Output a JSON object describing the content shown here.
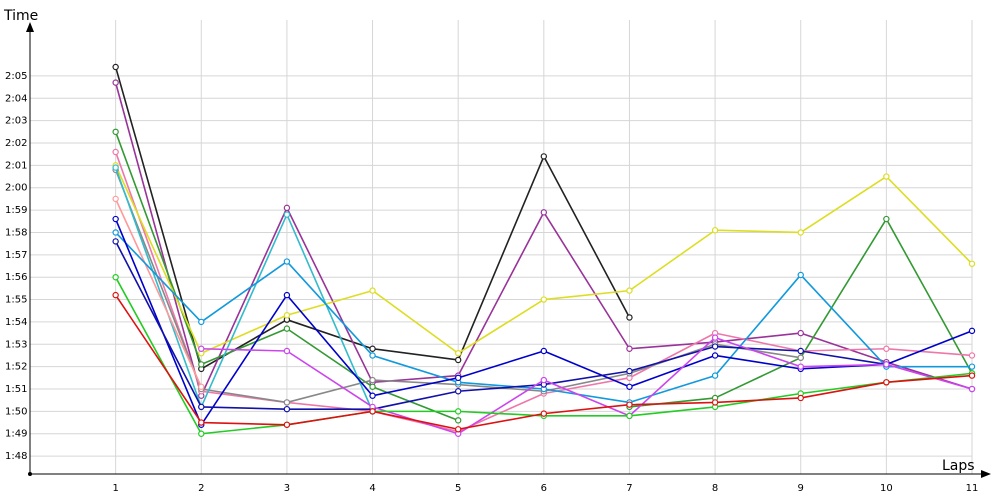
{
  "chart_data": {
    "type": "line",
    "title": "",
    "xlabel": "Laps",
    "ylabel": "Time",
    "x": [
      1,
      2,
      3,
      4,
      5,
      6,
      7,
      8,
      9,
      10,
      11
    ],
    "x_tick_labels": [
      "1",
      "2",
      "3",
      "4",
      "5",
      "6",
      "7",
      "8",
      "9",
      "10",
      "11"
    ],
    "y_tick_labels": [
      "1:48",
      "1:49",
      "1:50",
      "1:51",
      "1:52",
      "1:53",
      "1:54",
      "1:55",
      "1:56",
      "1:57",
      "1:58",
      "1:59",
      "2:00",
      "2:01",
      "2:02",
      "2:03",
      "2:04",
      "2:05"
    ],
    "y_unit": "seconds",
    "y_ticks_seconds": [
      108,
      109,
      110,
      111,
      112,
      113,
      114,
      115,
      116,
      117,
      118,
      119,
      120,
      121,
      122,
      123,
      124,
      125
    ],
    "ylim": [
      107.2,
      127.5
    ],
    "xlim": [
      0,
      11
    ],
    "grid": true,
    "legend": "none",
    "series": [
      {
        "color": "#222222",
        "values": [
          125.4,
          111.9,
          114.1,
          112.8,
          112.3,
          121.4,
          114.2,
          null,
          null,
          null,
          null
        ]
      },
      {
        "color": "#993399",
        "values": [
          124.7,
          110.7,
          119.1,
          111.3,
          111.6,
          118.9,
          112.8,
          113.1,
          113.5,
          112.2,
          111.0
        ]
      },
      {
        "color": "#339933",
        "values": [
          122.5,
          112.1,
          113.7,
          111.1,
          109.6,
          null,
          null,
          null,
          null,
          null,
          null
        ]
      },
      {
        "color": "#339933",
        "values": [
          null,
          null,
          null,
          null,
          null,
          null,
          110.2,
          110.6,
          112.4,
          118.6,
          111.7
        ]
      },
      {
        "color": "#ee77aa",
        "values": [
          121.6,
          110.9,
          110.4,
          110.0,
          109.1,
          110.8,
          111.5,
          113.5,
          112.7,
          112.8,
          112.5
        ]
      },
      {
        "color": "#dddd22",
        "values": [
          121.0,
          112.6,
          114.3,
          115.4,
          112.6,
          115.0,
          115.4,
          118.1,
          118.0,
          120.5,
          116.6
        ]
      },
      {
        "color": "#888888",
        "values": [
          120.8,
          111.0,
          110.4,
          111.4,
          111.2,
          110.9,
          111.7,
          113.0,
          112.4,
          null,
          null
        ]
      },
      {
        "color": "#33bbcc",
        "values": [
          120.9,
          110.2,
          118.8,
          110.0,
          null,
          null,
          null,
          null,
          null,
          null,
          null
        ]
      },
      {
        "color": "#ff9999",
        "values": [
          119.5,
          111.1,
          null,
          null,
          null,
          null,
          null,
          null,
          null,
          null,
          null
        ]
      },
      {
        "color": "#1199dd",
        "values": [
          118.0,
          114.0,
          116.7,
          112.5,
          111.3,
          111.0,
          110.4,
          111.6,
          116.1,
          112.0,
          112.0
        ]
      },
      {
        "color": "#0000cc",
        "values": [
          118.6,
          109.4,
          115.2,
          110.7,
          111.5,
          112.7,
          111.1,
          112.5,
          111.9,
          112.1,
          113.6
        ]
      },
      {
        "color": "#1111aa",
        "values": [
          117.6,
          110.2,
          110.1,
          110.1,
          110.9,
          111.2,
          111.8,
          112.9,
          112.7,
          112.1,
          null
        ]
      },
      {
        "color": "#cc44ee",
        "values": [
          null,
          112.8,
          112.7,
          110.2,
          109.0,
          111.4,
          109.8,
          113.3,
          112.0,
          112.1,
          111.0
        ]
      },
      {
        "color": "#22cc22",
        "values": [
          116.0,
          109.0,
          109.4,
          110.0,
          110.0,
          109.8,
          109.8,
          110.2,
          110.8,
          111.3,
          111.7
        ]
      },
      {
        "color": "#dd1111",
        "values": [
          115.2,
          109.5,
          109.4,
          110.0,
          109.2,
          109.9,
          110.3,
          110.4,
          110.6,
          111.3,
          111.6
        ]
      }
    ]
  }
}
